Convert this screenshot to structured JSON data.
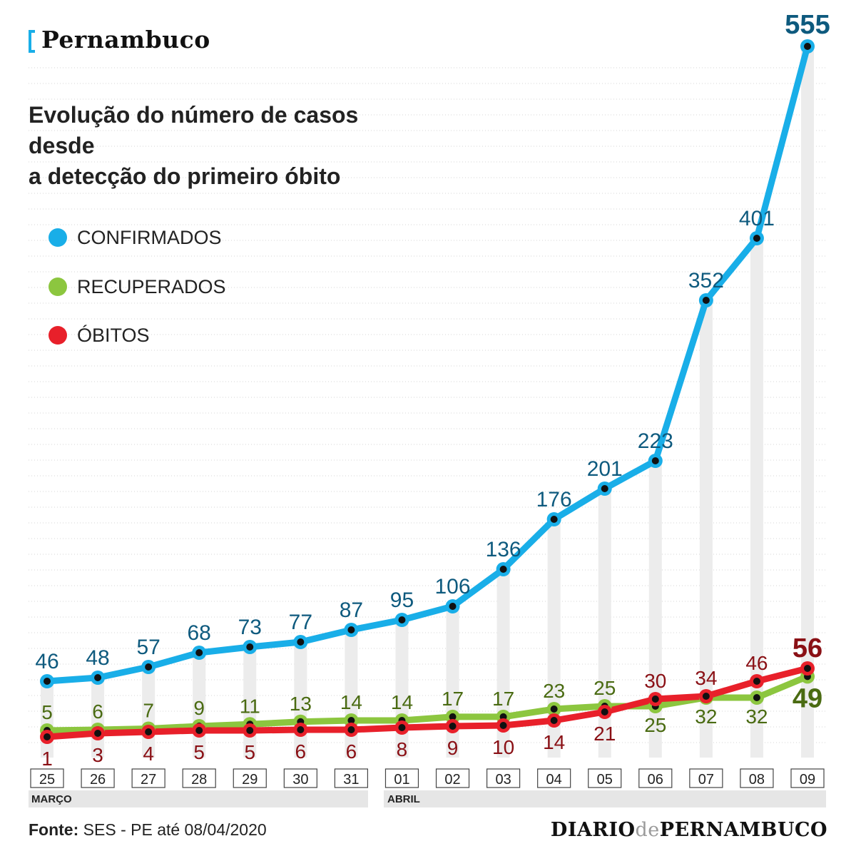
{
  "header": {
    "section": "Pernambuco",
    "title_line1": "Evolução do número de casos desde",
    "title_line2": "a detecção do primeiro óbito"
  },
  "legend": [
    {
      "label": "CONFIRMADOS",
      "color": "#19aee8"
    },
    {
      "label": "RECUPERADOS",
      "color": "#8cc63f"
    },
    {
      "label": "ÓBITOS",
      "color": "#e8202a"
    }
  ],
  "months": {
    "first": "MARÇO",
    "second": "ABRIL"
  },
  "footer": {
    "source_prefix": "Fonte:",
    "source_text": " SES - PE até 08/04/2020",
    "brand_part1": "DIARIO",
    "brand_part2": "de",
    "brand_part3": "PERNAMBUCO"
  },
  "chart_data": {
    "type": "line",
    "categories": [
      "25",
      "26",
      "27",
      "28",
      "29",
      "30",
      "31",
      "01",
      "02",
      "03",
      "04",
      "05",
      "06",
      "07",
      "08",
      "09"
    ],
    "series": [
      {
        "name": "CONFIRMADOS",
        "color": "#19aee8",
        "label_color": "#0e5a7e",
        "values": [
          46,
          48,
          57,
          68,
          73,
          77,
          87,
          95,
          106,
          136,
          176,
          201,
          223,
          352,
          401,
          555
        ]
      },
      {
        "name": "RECUPERADOS",
        "color": "#8cc63f",
        "label_color": "#4a6b12",
        "values": [
          5,
          6,
          7,
          9,
          11,
          13,
          14,
          14,
          17,
          17,
          23,
          25,
          25,
          32,
          32,
          49
        ]
      },
      {
        "name": "ÓBITOS",
        "color": "#e8202a",
        "label_color": "#8a1015",
        "values": [
          1,
          3,
          4,
          5,
          5,
          6,
          6,
          8,
          9,
          10,
          14,
          21,
          30,
          34,
          46,
          56
        ]
      }
    ]
  }
}
